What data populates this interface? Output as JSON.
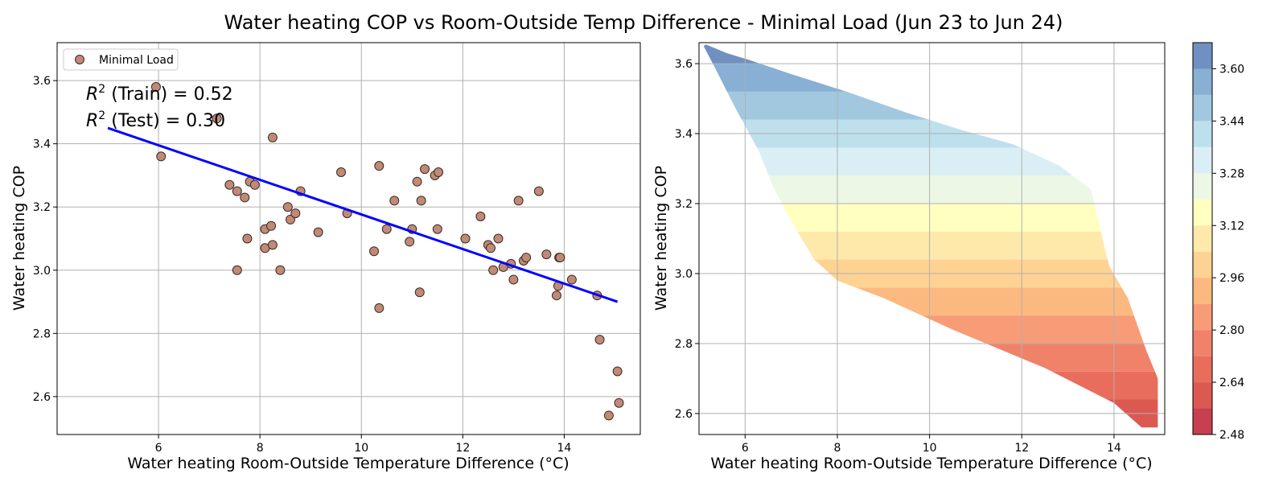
{
  "figure_title": "Water heating COP vs Room-Outside Temp Difference - Minimal Load (Jun 23 to Jun 24)",
  "chart_data": [
    {
      "type": "scatter",
      "xlabel": "Water heating Room-Outside Temperature Difference (°C)",
      "ylabel": "Water heating COP",
      "xlim": [
        4.0,
        15.5
      ],
      "ylim": [
        2.48,
        3.72
      ],
      "xticks": [
        6,
        8,
        10,
        12,
        14
      ],
      "yticks": [
        2.6,
        2.8,
        3.0,
        3.2,
        3.4,
        3.6
      ],
      "grid": true,
      "legend": {
        "label": "Minimal Load",
        "location": "upper-left"
      },
      "annotations": {
        "train_value": "0.52",
        "test_value": "0.30"
      },
      "series": [
        {
          "name": "Minimal Load",
          "marker_color": "#c08a76",
          "points": [
            [
              5.05,
              3.67
            ],
            [
              5.95,
              3.58
            ],
            [
              6.05,
              3.36
            ],
            [
              7.15,
              3.48
            ],
            [
              7.4,
              3.27
            ],
            [
              7.55,
              3.25
            ],
            [
              7.7,
              3.23
            ],
            [
              7.75,
              3.1
            ],
            [
              7.8,
              3.28
            ],
            [
              7.9,
              3.27
            ],
            [
              7.55,
              3.0
            ],
            [
              8.1,
              3.13
            ],
            [
              8.1,
              3.07
            ],
            [
              8.22,
              3.14
            ],
            [
              8.25,
              3.08
            ],
            [
              8.25,
              3.42
            ],
            [
              8.4,
              3.0
            ],
            [
              8.55,
              3.2
            ],
            [
              8.6,
              3.16
            ],
            [
              8.7,
              3.18
            ],
            [
              8.8,
              3.25
            ],
            [
              9.15,
              3.12
            ],
            [
              9.6,
              3.31
            ],
            [
              9.72,
              3.18
            ],
            [
              10.25,
              3.06
            ],
            [
              10.35,
              3.33
            ],
            [
              10.35,
              2.88
            ],
            [
              10.5,
              3.13
            ],
            [
              10.65,
              3.22
            ],
            [
              10.95,
              3.09
            ],
            [
              11.0,
              3.13
            ],
            [
              11.1,
              3.28
            ],
            [
              11.15,
              2.93
            ],
            [
              11.18,
              3.22
            ],
            [
              11.25,
              3.32
            ],
            [
              11.45,
              3.3
            ],
            [
              11.5,
              3.13
            ],
            [
              11.52,
              3.31
            ],
            [
              12.05,
              3.1
            ],
            [
              12.35,
              3.17
            ],
            [
              12.5,
              3.08
            ],
            [
              12.55,
              3.07
            ],
            [
              12.6,
              3.0
            ],
            [
              12.7,
              3.1
            ],
            [
              12.8,
              3.01
            ],
            [
              12.95,
              3.02
            ],
            [
              13.0,
              2.97
            ],
            [
              13.1,
              3.22
            ],
            [
              13.2,
              3.03
            ],
            [
              13.25,
              3.04
            ],
            [
              13.5,
              3.25
            ],
            [
              13.65,
              3.05
            ],
            [
              13.85,
              2.92
            ],
            [
              13.88,
              2.95
            ],
            [
              13.9,
              3.04
            ],
            [
              13.92,
              3.04
            ],
            [
              14.15,
              2.97
            ],
            [
              14.65,
              2.92
            ],
            [
              14.7,
              2.78
            ],
            [
              14.88,
              2.54
            ],
            [
              15.05,
              2.68
            ],
            [
              15.08,
              2.58
            ]
          ]
        },
        {
          "type": "line",
          "color": "#0000ff",
          "x": [
            5.0,
            15.05
          ],
          "y": [
            3.45,
            2.9
          ]
        }
      ]
    },
    {
      "type": "contour",
      "xlabel": "Water heating Room-Outside Temperature Difference (°C)",
      "ylabel": "Water heating COP",
      "xlim": [
        5.0,
        15.1
      ],
      "ylim": [
        2.54,
        3.66
      ],
      "xticks": [
        6,
        8,
        10,
        12,
        14
      ],
      "yticks": [
        2.6,
        2.8,
        3.0,
        3.2,
        3.4,
        3.6
      ],
      "grid": true,
      "colormap": "RdYlBu",
      "levels": [
        2.48,
        2.56,
        2.64,
        2.72,
        2.8,
        2.88,
        2.96,
        3.04,
        3.12,
        3.2,
        3.28,
        3.36,
        3.44,
        3.52,
        3.6,
        3.68
      ],
      "level_colors": [
        "#c8404f",
        "#dc5952",
        "#e96d5c",
        "#f0826a",
        "#f79c76",
        "#fbb980",
        "#fdd293",
        "#fee9ab",
        "#ffffbf",
        "#edf7e5",
        "#daeff5",
        "#bde0ec",
        "#a1c8df",
        "#88afd4",
        "#7090c2",
        "#6670b4"
      ],
      "colorbar_ticks": [
        "2.48",
        "2.64",
        "2.80",
        "2.96",
        "3.12",
        "3.28",
        "3.44",
        "3.60"
      ],
      "boundary": {
        "upper_edge": [
          [
            5.15,
            3.655
          ],
          [
            5.6,
            3.63
          ],
          [
            6.1,
            3.61
          ],
          [
            7.0,
            3.57
          ],
          [
            8.2,
            3.52
          ],
          [
            9.5,
            3.46
          ],
          [
            10.7,
            3.41
          ],
          [
            11.8,
            3.37
          ],
          [
            12.8,
            3.31
          ],
          [
            13.5,
            3.24
          ],
          [
            13.75,
            3.1
          ],
          [
            13.9,
            3.02
          ],
          [
            14.3,
            2.93
          ],
          [
            14.7,
            2.78
          ],
          [
            14.95,
            2.7
          ]
        ],
        "lower_edge": [
          [
            14.95,
            2.56
          ],
          [
            14.6,
            2.56
          ],
          [
            14.0,
            2.63
          ],
          [
            12.5,
            2.73
          ],
          [
            10.5,
            2.84
          ],
          [
            9.0,
            2.93
          ],
          [
            8.0,
            2.98
          ],
          [
            7.5,
            3.04
          ],
          [
            7.0,
            3.15
          ],
          [
            6.6,
            3.25
          ],
          [
            6.3,
            3.35
          ],
          [
            5.8,
            3.47
          ],
          [
            5.3,
            3.6
          ],
          [
            5.1,
            3.65
          ]
        ]
      }
    }
  ]
}
